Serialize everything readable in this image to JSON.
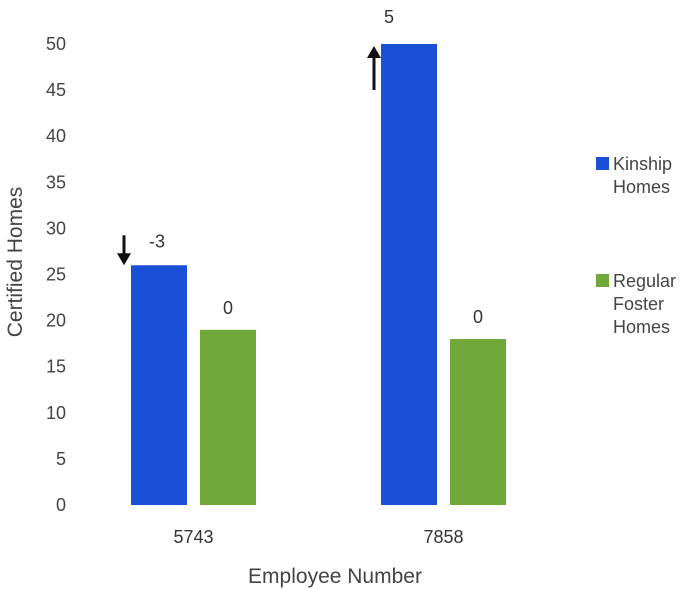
{
  "chart_data": {
    "type": "bar",
    "categories": [
      "5743",
      "7858"
    ],
    "series": [
      {
        "name": "Kinship Homes",
        "values": [
          26,
          50
        ],
        "color": "#1a4fd8",
        "change_labels": [
          "-3",
          "5"
        ],
        "arrows": [
          "down-arrow-icon",
          "up-arrow-icon"
        ]
      },
      {
        "name": "Regular Foster Homes",
        "values": [
          19,
          18
        ],
        "color": "#70a83a",
        "change_labels": [
          "0",
          "0"
        ]
      }
    ],
    "xlabel": "Employee Number",
    "ylabel": "Certified Homes",
    "ylim": [
      0,
      50
    ],
    "yticks": [
      0,
      5,
      10,
      15,
      20,
      25,
      30,
      35,
      40,
      45,
      50
    ],
    "grid": false,
    "legend_position": "right"
  }
}
